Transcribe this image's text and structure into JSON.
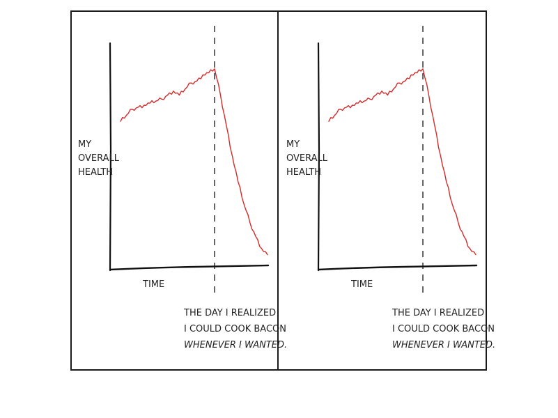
{
  "comic": {
    "panels": [
      {
        "ylabel": [
          "MY",
          "OVERALL",
          "HEALTH"
        ],
        "xlabel": "TIME",
        "annotation": [
          "THE DAY I REALIZED",
          "I COULD COOK BACON",
          "WHENEVER I WANTED."
        ]
      },
      {
        "ylabel": [
          "MY",
          "OVERALL",
          "HEALTH"
        ],
        "xlabel": "TIME",
        "annotation": [
          "THE DAY I REALIZED",
          "I COULD COOK BACON",
          "WHENEVER I WANTED."
        ]
      }
    ]
  },
  "chart_data": [
    {
      "type": "line",
      "xlabel": "TIME",
      "ylabel": "MY OVERALL HEALTH",
      "annotation": "THE DAY I REALIZED I COULD COOK BACON WHENEVER I WANTED.",
      "event_x": 64,
      "xlim": [
        0,
        100
      ],
      "ylim": [
        0,
        100
      ],
      "grid": false,
      "series": [
        {
          "color": "#d42a2a",
          "x": [
            0,
            4,
            8,
            12,
            16,
            20,
            24,
            28,
            32,
            36,
            40,
            44,
            48,
            52,
            56,
            60,
            64,
            68,
            72,
            76,
            80,
            84,
            88,
            92,
            96,
            100
          ],
          "y": [
            72,
            75,
            78,
            79,
            80,
            81,
            82,
            83,
            85,
            87,
            85,
            88,
            91,
            92,
            95,
            96,
            98,
            85,
            70,
            55,
            42,
            31,
            22,
            15,
            9,
            6
          ]
        }
      ]
    },
    {
      "type": "line",
      "xlabel": "TIME",
      "ylabel": "MY OVERALL HEALTH",
      "annotation": "THE DAY I REALIZED I COULD COOK BACON WHENEVER I WANTED.",
      "event_x": 64,
      "xlim": [
        0,
        100
      ],
      "ylim": [
        0,
        100
      ],
      "grid": false,
      "series": [
        {
          "color": "#d42a2a",
          "x": [
            0,
            4,
            8,
            12,
            16,
            20,
            24,
            28,
            32,
            36,
            40,
            44,
            48,
            52,
            56,
            60,
            64,
            68,
            72,
            76,
            80,
            84,
            88,
            92,
            96,
            100
          ],
          "y": [
            72,
            75,
            78,
            79,
            80,
            81,
            82,
            83,
            85,
            87,
            85,
            88,
            91,
            92,
            95,
            96,
            98,
            85,
            70,
            55,
            42,
            31,
            22,
            15,
            9,
            6
          ]
        }
      ]
    }
  ]
}
